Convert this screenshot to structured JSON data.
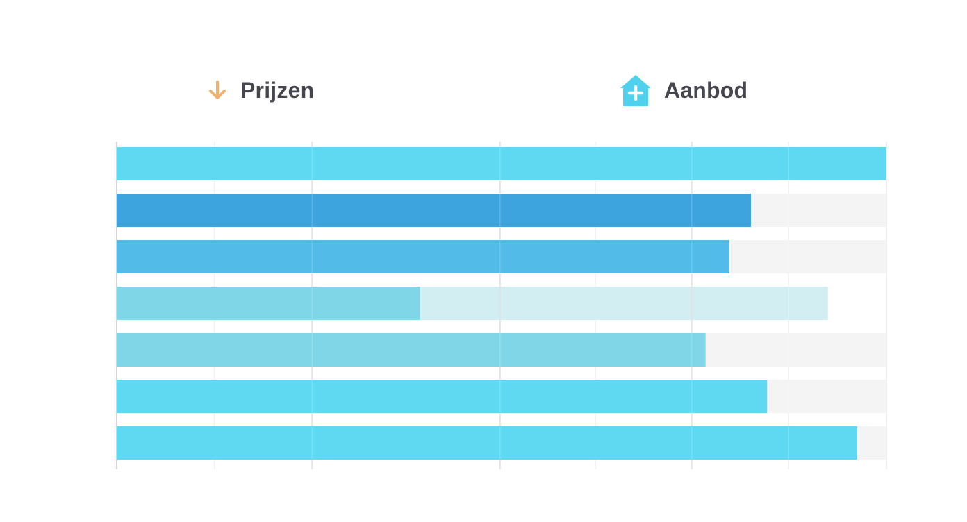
{
  "legend": {
    "prices": {
      "label": "Prijzen",
      "icon": "arrow-down-icon",
      "color": "#f0b070"
    },
    "supply": {
      "label": "Aanbod",
      "icon": "house-plus-icon",
      "color": "#4fd0ec"
    }
  },
  "chart_data": {
    "type": "bar",
    "orientation": "horizontal",
    "title": "",
    "xlabel": "",
    "ylabel": "",
    "xlim": [
      0,
      100
    ],
    "grid": true,
    "legend_position": "top",
    "series": [
      {
        "values": [
          100,
          82.4,
          79.6,
          39.4,
          76.5,
          84.5,
          96.2
        ],
        "colors": [
          "#5fd9f1",
          "#3da4dd",
          "#52bbe8",
          "#7fd6e7",
          "#80d6e6",
          "#5fd9f1",
          "#5fd9f1"
        ]
      }
    ],
    "background_values": [
      100,
      100,
      100,
      92.4,
      100,
      100,
      100
    ],
    "track_colors": [
      "#f4f4f4",
      "#f4f4f4",
      "#f4f4f4",
      "#d2eef3",
      "#f4f4f4",
      "#f4f4f4",
      "#f4f4f4"
    ]
  }
}
